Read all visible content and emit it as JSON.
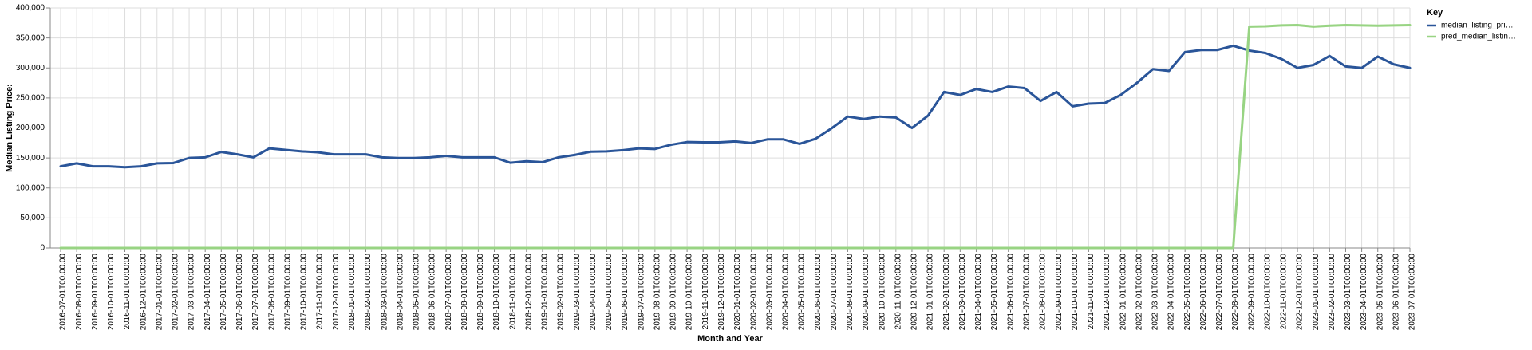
{
  "chart_data": {
    "type": "line",
    "xlabel": "Month and Year",
    "ylabel": "Median Listing Price:",
    "ylim": [
      0,
      400000
    ],
    "y_ticks": [
      0,
      50000,
      100000,
      150000,
      200000,
      250000,
      300000,
      350000,
      400000
    ],
    "y_tick_labels": [
      "0",
      "50,000",
      "100,000",
      "150,000",
      "200,000",
      "250,000",
      "300,000",
      "350,000",
      "400,000"
    ],
    "grid": true,
    "legend": {
      "title": "Key",
      "placement": "right"
    },
    "x": [
      "2016-07-01T00:00:00",
      "2016-08-01T00:00:00",
      "2016-09-01T00:00:00",
      "2016-10-01T00:00:00",
      "2016-11-01T00:00:00",
      "2016-12-01T00:00:00",
      "2017-01-01T00:00:00",
      "2017-02-01T00:00:00",
      "2017-03-01T00:00:00",
      "2017-04-01T00:00:00",
      "2017-05-01T00:00:00",
      "2017-06-01T00:00:00",
      "2017-07-01T00:00:00",
      "2017-08-01T00:00:00",
      "2017-09-01T00:00:00",
      "2017-10-01T00:00:00",
      "2017-11-01T00:00:00",
      "2017-12-01T00:00:00",
      "2018-01-01T00:00:00",
      "2018-02-01T00:00:00",
      "2018-03-01T00:00:00",
      "2018-04-01T00:00:00",
      "2018-05-01T00:00:00",
      "2018-06-01T00:00:00",
      "2018-07-01T00:00:00",
      "2018-08-01T00:00:00",
      "2018-09-01T00:00:00",
      "2018-10-01T00:00:00",
      "2018-11-01T00:00:00",
      "2018-12-01T00:00:00",
      "2019-01-01T00:00:00",
      "2019-02-01T00:00:00",
      "2019-03-01T00:00:00",
      "2019-04-01T00:00:00",
      "2019-05-01T00:00:00",
      "2019-06-01T00:00:00",
      "2019-07-01T00:00:00",
      "2019-08-01T00:00:00",
      "2019-09-01T00:00:00",
      "2019-10-01T00:00:00",
      "2019-11-01T00:00:00",
      "2019-12-01T00:00:00",
      "2020-01-01T00:00:00",
      "2020-02-01T00:00:00",
      "2020-03-01T00:00:00",
      "2020-04-01T00:00:00",
      "2020-05-01T00:00:00",
      "2020-06-01T00:00:00",
      "2020-07-01T00:00:00",
      "2020-08-01T00:00:00",
      "2020-09-01T00:00:00",
      "2020-10-01T00:00:00",
      "2020-11-01T00:00:00",
      "2020-12-01T00:00:00",
      "2021-01-01T00:00:00",
      "2021-02-01T00:00:00",
      "2021-03-01T00:00:00",
      "2021-04-01T00:00:00",
      "2021-05-01T00:00:00",
      "2021-06-01T00:00:00",
      "2021-07-01T00:00:00",
      "2021-08-01T00:00:00",
      "2021-09-01T00:00:00",
      "2021-10-01T00:00:00",
      "2021-11-01T00:00:00",
      "2021-12-01T00:00:00",
      "2022-01-01T00:00:00",
      "2022-02-01T00:00:00",
      "2022-03-01T00:00:00",
      "2022-04-01T00:00:00",
      "2022-05-01T00:00:00",
      "2022-06-01T00:00:00",
      "2022-07-01T00:00:00",
      "2022-08-01T00:00:00",
      "2022-09-01T00:00:00",
      "2022-10-01T00:00:00",
      "2022-11-01T00:00:00",
      "2022-12-01T00:00:00",
      "2023-01-01T00:00:00",
      "2023-02-01T00:00:00",
      "2023-03-01T00:00:00",
      "2023-04-01T00:00:00",
      "2023-05-01T00:00:00",
      "2023-06-01T00:00:00",
      "2023-07-01T00:00:00"
    ],
    "series": [
      {
        "name": "median_listing_pri…",
        "color": "#2a5599",
        "values": [
          136000,
          141000,
          136000,
          136000,
          134500,
          136000,
          141000,
          141500,
          150000,
          151000,
          160000,
          156000,
          151000,
          166000,
          163500,
          161000,
          159500,
          156000,
          156000,
          156000,
          151000,
          149900,
          149900,
          151000,
          153500,
          151000,
          151000,
          151000,
          142000,
          144500,
          143000,
          151000,
          155000,
          160500,
          161000,
          163000,
          165900,
          165000,
          172000,
          176500,
          176000,
          176000,
          177500,
          175000,
          181000,
          181000,
          173500,
          182000,
          199500,
          219000,
          215000,
          219000,
          217500,
          200000,
          220500,
          260000,
          255000,
          264900,
          259900,
          269000,
          266500,
          245000,
          259900,
          236000,
          240500,
          241500,
          255000,
          275000,
          298000,
          295000,
          326500,
          329900,
          329900,
          337000,
          329000,
          324900,
          315000,
          300000,
          305000,
          320000,
          302500,
          300000,
          319000,
          306000,
          300000
        ]
      },
      {
        "name": "pred_median_listin…",
        "color": "#98d483",
        "values": [
          0,
          0,
          0,
          0,
          0,
          0,
          0,
          0,
          0,
          0,
          0,
          0,
          0,
          0,
          0,
          0,
          0,
          0,
          0,
          0,
          0,
          0,
          0,
          0,
          0,
          0,
          0,
          0,
          0,
          0,
          0,
          0,
          0,
          0,
          0,
          0,
          0,
          0,
          0,
          0,
          0,
          0,
          0,
          0,
          0,
          0,
          0,
          0,
          0,
          0,
          0,
          0,
          0,
          0,
          0,
          0,
          0,
          0,
          0,
          0,
          0,
          0,
          0,
          0,
          0,
          0,
          0,
          0,
          0,
          0,
          0,
          0,
          0,
          0,
          369000,
          369500,
          371000,
          371500,
          369000,
          370500,
          371500,
          371000,
          370500,
          371000,
          371500
        ]
      }
    ]
  }
}
